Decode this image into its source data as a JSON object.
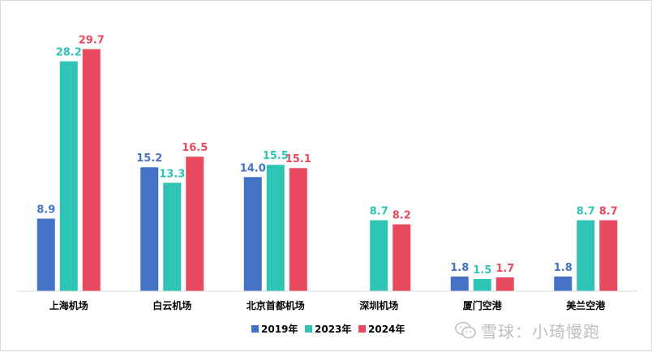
{
  "chart_data": {
    "type": "bar",
    "categories": [
      "上海机场",
      "白云机场",
      "北京首都机场",
      "深圳机场",
      "厦门空港",
      "美兰空港"
    ],
    "series": [
      {
        "name": "2019年",
        "color": "#4472C4",
        "values": [
          8.9,
          15.2,
          14.0,
          null,
          1.8,
          1.8
        ]
      },
      {
        "name": "2023年",
        "color": "#2EC4B6",
        "values": [
          28.2,
          13.3,
          15.5,
          8.7,
          1.5,
          8.7
        ]
      },
      {
        "name": "2024年",
        "color": "#E84A5F",
        "values": [
          29.7,
          16.5,
          15.1,
          8.2,
          1.7,
          8.7
        ]
      }
    ],
    "title": "",
    "xlabel": "",
    "ylabel": "",
    "ylim": [
      0,
      30
    ],
    "grid": false,
    "legend_position": "bottom-center"
  },
  "watermark": {
    "text": "雪球：小琦慢跑",
    "icon": "wechat-icon"
  }
}
